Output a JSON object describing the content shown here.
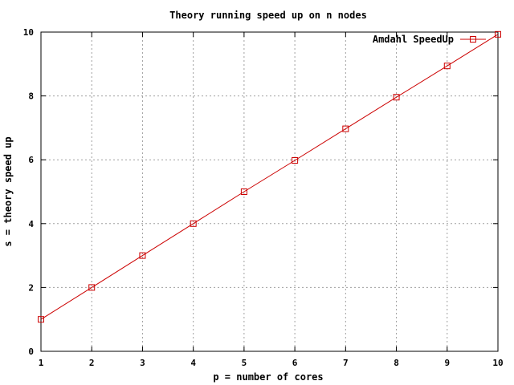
{
  "chart_data": {
    "type": "line",
    "title": "Theory running speed up on  n nodes",
    "xlabel": "p = number of cores",
    "ylabel": "s = theory speed up",
    "xlim": [
      1,
      10
    ],
    "ylim": [
      0,
      10
    ],
    "xticks": [
      "1",
      "2",
      "3",
      "4",
      "5",
      "6",
      "7",
      "8",
      "9",
      "10"
    ],
    "yticks": [
      "0",
      "2",
      "4",
      "6",
      "8",
      "10"
    ],
    "grid": true,
    "legend_position": "top-right",
    "x": [
      1,
      2,
      3,
      4,
      5,
      6,
      7,
      8,
      9,
      10
    ],
    "series": [
      {
        "name": "Amdahl SpeedUp",
        "color": "#cc0000",
        "marker": "square",
        "values": [
          1.0,
          2.0,
          3.0,
          4.0,
          5.0,
          5.98,
          6.97,
          7.96,
          8.94,
          9.93
        ]
      }
    ]
  }
}
